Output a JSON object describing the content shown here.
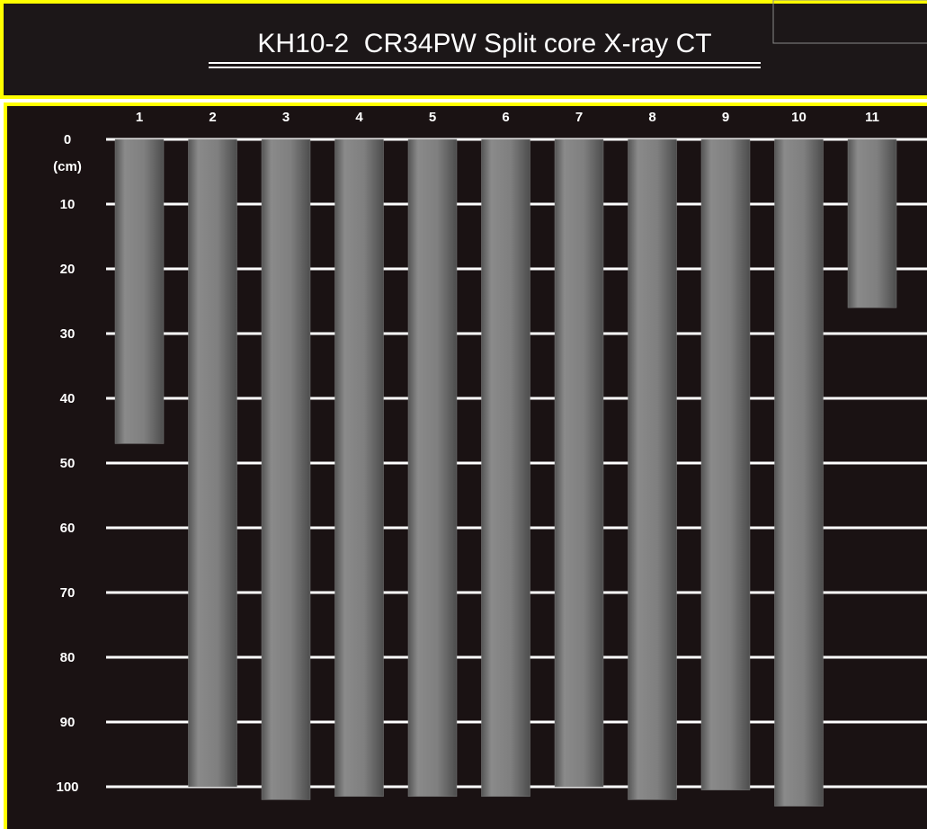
{
  "chart_data": {
    "type": "bar",
    "title": "KH10-2  CR34PW Split core X-ray CT",
    "y_label": "(cm)",
    "categories": [
      "1",
      "2",
      "3",
      "4",
      "5",
      "6",
      "7",
      "8",
      "9",
      "10",
      "11"
    ],
    "values": [
      47,
      100,
      102,
      101.5,
      101.5,
      101.5,
      100,
      102,
      100.5,
      103,
      26
    ],
    "color": "#7c7c7c",
    "ylim": [
      0,
      105
    ],
    "y_inverted": true,
    "yticks": [
      0,
      10,
      20,
      30,
      40,
      50,
      60,
      70,
      80,
      90,
      100
    ],
    "grid": true
  }
}
